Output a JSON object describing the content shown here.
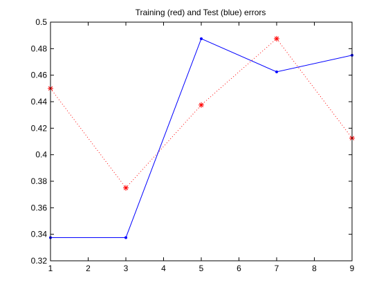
{
  "chart_data": {
    "type": "line",
    "title": "Training (red) and Test (blue) errors",
    "xlabel": "",
    "ylabel": "",
    "xlim": [
      1,
      9
    ],
    "ylim": [
      0.32,
      0.5
    ],
    "grid": false,
    "xticks": [
      1,
      2,
      3,
      4,
      5,
      6,
      7,
      8,
      9
    ],
    "xtick_labels": [
      "1",
      "2",
      "3",
      "4",
      "5",
      "6",
      "7",
      "8",
      "9"
    ],
    "yticks": [
      0.32,
      0.34,
      0.36,
      0.38,
      0.4,
      0.42,
      0.44,
      0.46,
      0.48,
      0.5
    ],
    "ytick_labels": [
      "0.32",
      "0.34",
      "0.36",
      "0.38",
      "0.4",
      "0.42",
      "0.44",
      "0.46",
      "0.48",
      "0.5"
    ],
    "series": [
      {
        "x": [
          1,
          3,
          5,
          7,
          9
        ],
        "y": [
          0.45,
          0.375,
          0.4375,
          0.4875,
          0.4125
        ],
        "color": "#ff0000",
        "line_style": "dotted",
        "marker": "asterisk"
      },
      {
        "x": [
          1,
          3,
          5,
          7,
          9
        ],
        "y": [
          0.3375,
          0.3375,
          0.4875,
          0.4625,
          0.475
        ],
        "color": "#0000ff",
        "line_style": "solid",
        "marker": "dot"
      }
    ]
  }
}
